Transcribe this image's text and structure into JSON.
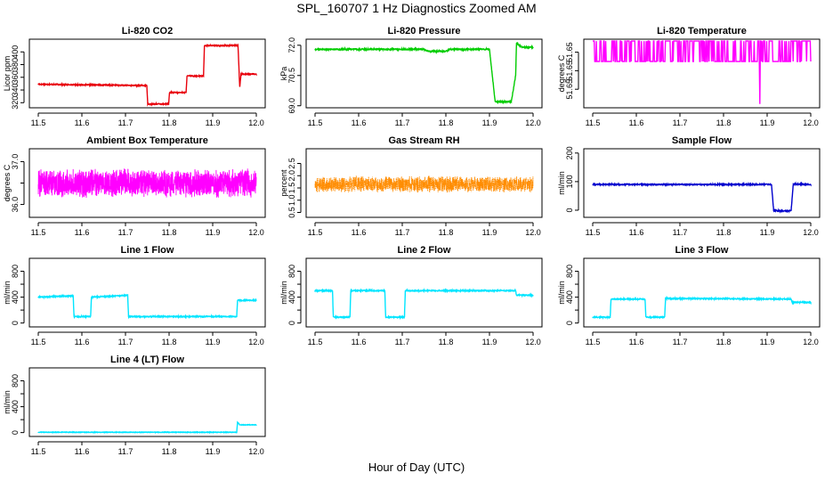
{
  "figure": {
    "title": "SPL_160707  1 Hz Diagnostics Zoomed AM",
    "xlabel": "Hour of Day (UTC)"
  },
  "chart_data": [
    {
      "type": "line",
      "title": "Li-820 CO2",
      "ylabel": "Licor ppm",
      "color": "#e8000b",
      "xlim": [
        11.5,
        12.0
      ],
      "xticks": [
        "11.5",
        "11.6",
        "11.7",
        "11.8",
        "11.9",
        "12.0"
      ],
      "ylim": [
        312,
        420
      ],
      "yticks": [
        320,
        340,
        360,
        380,
        400
      ],
      "noise": 0.8,
      "series": [
        {
          "x": [
            11.5,
            11.749,
            11.751,
            11.799,
            11.801,
            11.839,
            11.841,
            11.879,
            11.881,
            11.958,
            11.962,
            11.965,
            11.99,
            12.0
          ],
          "y": [
            349,
            347,
            318,
            318,
            336,
            336,
            362,
            362,
            410,
            410,
            345,
            365,
            365,
            365
          ]
        }
      ]
    },
    {
      "type": "line",
      "title": "Li-820 Pressure",
      "ylabel": "kPa",
      "color": "#00cc00",
      "xlim": [
        11.5,
        12.0
      ],
      "xticks": [
        "11.5",
        "11.6",
        "11.7",
        "11.8",
        "11.9",
        "12.0"
      ],
      "ylim": [
        68.9,
        72.3
      ],
      "yticks": [
        69.0,
        70.5,
        72.0
      ],
      "ytick_labels": [
        "69.0",
        "70.5",
        "72.0"
      ],
      "noise": 0.03,
      "series": [
        {
          "x": [
            11.5,
            11.75,
            11.76,
            11.8,
            11.81,
            11.9,
            11.913,
            11.95,
            11.96,
            11.962,
            11.975,
            12.0
          ],
          "y": [
            71.8,
            71.8,
            71.7,
            71.7,
            71.8,
            71.8,
            69.2,
            69.2,
            70.5,
            72.1,
            71.9,
            71.9
          ]
        }
      ]
    },
    {
      "type": "line",
      "title": "Li-820 Temperature",
      "ylabel": "degrees C",
      "color": "#ff00ff",
      "xlim": [
        11.5,
        12.0
      ],
      "xticks": [
        "11.5",
        "11.6",
        "11.7",
        "11.8",
        "11.9",
        "12.0"
      ],
      "ylim": [
        51.6465,
        51.6502
      ],
      "yticks": [
        51.6475,
        51.6485,
        51.6495
      ],
      "ytick_labels": [
        "51.65",
        "51.65",
        "51.65"
      ],
      "pattern": "toggle",
      "levels": [
        51.649,
        51.6501
      ],
      "spikes": [
        {
          "x": 11.883,
          "y": 51.6467
        }
      ]
    },
    {
      "type": "line",
      "title": "Ambient Box Temperature",
      "ylabel": "degrees C",
      "color": "#ff00ff",
      "xlim": [
        11.5,
        12.0
      ],
      "xticks": [
        "11.5",
        "11.6",
        "11.7",
        "11.8",
        "11.9",
        "12.0"
      ],
      "ylim": [
        35.7,
        37.3
      ],
      "yticks": [
        36.0,
        36.5,
        37.0
      ],
      "ytick_labels": [
        "36.0",
        "",
        "37.0"
      ],
      "pattern": "noise",
      "center": 36.5,
      "spread": 0.35
    },
    {
      "type": "line",
      "title": "Gas Stream RH",
      "ylabel": "percent",
      "color": "#ff8c00",
      "xlim": [
        11.5,
        12.0
      ],
      "xticks": [
        "11.5",
        "11.6",
        "11.7",
        "11.8",
        "11.9",
        "12.0"
      ],
      "ylim": [
        0.3,
        3.1
      ],
      "yticks": [
        0.5,
        1.0,
        1.5,
        2.0,
        2.5
      ],
      "ytick_labels": [
        "0.5",
        "1.0",
        "1.5",
        "2.0",
        "2.5"
      ],
      "pattern": "noise",
      "center": 1.65,
      "spread": 0.35,
      "dotted": true
    },
    {
      "type": "line",
      "title": "Sample Flow",
      "ylabel": "ml/min",
      "color": "#0000cd",
      "xlim": [
        11.5,
        12.0
      ],
      "xticks": [
        "11.5",
        "11.6",
        "11.7",
        "11.8",
        "11.9",
        "12.0"
      ],
      "ylim": [
        -25,
        215
      ],
      "yticks": [
        0,
        100,
        200
      ],
      "noise": 2,
      "series": [
        {
          "x": [
            11.5,
            11.91,
            11.915,
            11.955,
            11.96,
            12.0
          ],
          "y": [
            90,
            90,
            -2,
            -2,
            92,
            90
          ]
        }
      ]
    },
    {
      "type": "line",
      "title": "Line 1 Flow",
      "ylabel": "ml/min",
      "color": "#00e5ff",
      "xlim": [
        11.5,
        12.0
      ],
      "xticks": [
        "11.5",
        "11.6",
        "11.7",
        "11.8",
        "11.9",
        "12.0"
      ],
      "ylim": [
        -60,
        1000
      ],
      "yticks": [
        0,
        200,
        400,
        600,
        800
      ],
      "ytick_labels": [
        "0",
        "",
        "400",
        "",
        "800"
      ],
      "noise": 8,
      "series": [
        {
          "x": [
            11.5,
            11.58,
            11.582,
            11.62,
            11.622,
            11.705,
            11.707,
            11.955,
            11.957,
            12.0
          ],
          "y": [
            400,
            420,
            100,
            100,
            400,
            430,
            100,
            100,
            350,
            350
          ]
        }
      ]
    },
    {
      "type": "line",
      "title": "Line 2 Flow",
      "ylabel": "ml/min",
      "color": "#00e5ff",
      "xlim": [
        11.5,
        12.0
      ],
      "xticks": [
        "11.5",
        "11.6",
        "11.7",
        "11.8",
        "11.9",
        "12.0"
      ],
      "ylim": [
        -60,
        1000
      ],
      "yticks": [
        0,
        200,
        400,
        600,
        800
      ],
      "ytick_labels": [
        "0",
        "",
        "400",
        "",
        "800"
      ],
      "noise": 8,
      "series": [
        {
          "x": [
            11.5,
            11.54,
            11.542,
            11.58,
            11.582,
            11.66,
            11.662,
            11.705,
            11.707,
            11.96,
            11.962,
            12.0
          ],
          "y": [
            500,
            500,
            90,
            90,
            500,
            500,
            90,
            90,
            500,
            500,
            430,
            430
          ]
        }
      ]
    },
    {
      "type": "line",
      "title": "Line 3 Flow",
      "ylabel": "ml/min",
      "color": "#00e5ff",
      "xlim": [
        11.5,
        12.0
      ],
      "xticks": [
        "11.5",
        "11.6",
        "11.7",
        "11.8",
        "11.9",
        "12.0"
      ],
      "ylim": [
        -60,
        1000
      ],
      "yticks": [
        0,
        200,
        400,
        600,
        800
      ],
      "ytick_labels": [
        "0",
        "",
        "400",
        "",
        "800"
      ],
      "noise": 8,
      "series": [
        {
          "x": [
            11.5,
            11.54,
            11.542,
            11.62,
            11.622,
            11.665,
            11.667,
            11.955,
            11.957,
            12.0
          ],
          "y": [
            90,
            90,
            370,
            370,
            90,
            90,
            380,
            370,
            320,
            320
          ]
        }
      ]
    },
    {
      "type": "line",
      "title": "Line 4 (LT) Flow",
      "ylabel": "ml/min",
      "color": "#00e5ff",
      "xlim": [
        11.5,
        12.0
      ],
      "xticks": [
        "11.5",
        "11.6",
        "11.7",
        "11.8",
        "11.9",
        "12.0"
      ],
      "ylim": [
        -60,
        1000
      ],
      "yticks": [
        0,
        200,
        400,
        600,
        800
      ],
      "ytick_labels": [
        "0",
        "",
        "400",
        "",
        "800"
      ],
      "noise": 4,
      "series": [
        {
          "x": [
            11.5,
            11.955,
            11.957,
            11.962,
            12.0
          ],
          "y": [
            5,
            5,
            160,
            120,
            120
          ]
        }
      ]
    }
  ]
}
